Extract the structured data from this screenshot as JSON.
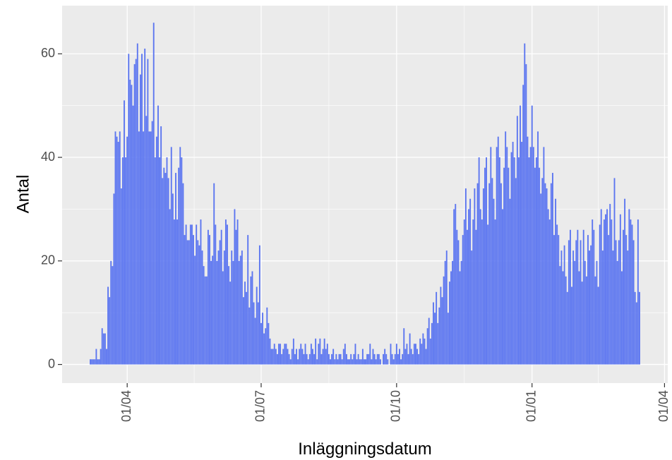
{
  "chart_data": {
    "type": "bar",
    "x_label": "Inläggningsdatum",
    "y_label": "Antal",
    "color": "#5b75f0",
    "grid": true,
    "xlim": [
      -44.2,
      367.2
    ],
    "ylim": [
      -3.6,
      69.3
    ],
    "xticks": [
      {
        "value": 0,
        "label": "01/04"
      },
      {
        "value": 91,
        "label": "01/07"
      },
      {
        "value": 183,
        "label": "01/10"
      },
      {
        "value": 275,
        "label": "01/01"
      },
      {
        "value": 365,
        "label": "01/04"
      }
    ],
    "yticks": [
      0,
      20,
      40,
      60
    ],
    "x": [
      -25,
      -24,
      -23,
      -22,
      -21,
      -20,
      -19,
      -18,
      -17,
      -16,
      -15,
      -14,
      -13,
      -12,
      -11,
      -10,
      -9,
      -8,
      -7,
      -6,
      -5,
      -4,
      -3,
      -2,
      -1,
      0,
      1,
      2,
      3,
      4,
      5,
      6,
      7,
      8,
      9,
      10,
      11,
      12,
      13,
      14,
      15,
      16,
      17,
      18,
      19,
      20,
      21,
      22,
      23,
      24,
      25,
      26,
      27,
      28,
      29,
      30,
      31,
      32,
      33,
      34,
      35,
      36,
      37,
      38,
      39,
      40,
      41,
      42,
      43,
      44,
      45,
      46,
      47,
      48,
      49,
      50,
      51,
      52,
      53,
      54,
      55,
      56,
      57,
      58,
      59,
      60,
      61,
      62,
      63,
      64,
      65,
      66,
      67,
      68,
      69,
      70,
      71,
      72,
      73,
      74,
      75,
      76,
      77,
      78,
      79,
      80,
      81,
      82,
      83,
      84,
      85,
      86,
      87,
      88,
      89,
      90,
      91,
      92,
      93,
      94,
      95,
      96,
      97,
      98,
      99,
      100,
      101,
      102,
      103,
      104,
      105,
      106,
      107,
      108,
      109,
      110,
      111,
      112,
      113,
      114,
      115,
      116,
      117,
      118,
      119,
      120,
      121,
      122,
      123,
      124,
      125,
      126,
      127,
      128,
      129,
      130,
      131,
      132,
      133,
      134,
      135,
      136,
      137,
      138,
      139,
      140,
      141,
      142,
      143,
      144,
      145,
      146,
      147,
      148,
      149,
      150,
      151,
      152,
      153,
      154,
      155,
      156,
      157,
      158,
      159,
      160,
      161,
      162,
      163,
      164,
      165,
      166,
      167,
      168,
      169,
      170,
      171,
      172,
      173,
      174,
      175,
      176,
      177,
      178,
      179,
      180,
      181,
      182,
      183,
      184,
      185,
      186,
      187,
      188,
      189,
      190,
      191,
      192,
      193,
      194,
      195,
      196,
      197,
      198,
      199,
      200,
      201,
      202,
      203,
      204,
      205,
      206,
      207,
      208,
      209,
      210,
      211,
      212,
      213,
      214,
      215,
      216,
      217,
      218,
      219,
      220,
      221,
      222,
      223,
      224,
      225,
      226,
      227,
      228,
      229,
      230,
      231,
      232,
      233,
      234,
      235,
      236,
      237,
      238,
      239,
      240,
      241,
      242,
      243,
      244,
      245,
      246,
      247,
      248,
      249,
      250,
      251,
      252,
      253,
      254,
      255,
      256,
      257,
      258,
      259,
      260,
      261,
      262,
      263,
      264,
      265,
      266,
      267,
      268,
      269,
      270,
      271,
      272,
      273,
      274,
      275,
      276,
      277,
      278,
      279,
      280,
      281,
      282,
      283,
      284,
      285,
      286,
      287,
      288,
      289,
      290,
      291,
      292,
      293,
      294,
      295,
      296,
      297,
      298,
      299,
      300,
      301,
      302,
      303,
      304,
      305,
      306,
      307,
      308,
      309,
      310,
      311,
      312,
      313,
      314,
      315,
      316,
      317,
      318,
      319,
      320,
      321,
      322,
      323,
      324,
      325,
      326,
      327,
      328,
      329,
      330,
      331,
      332,
      333,
      334,
      335,
      336,
      337,
      338,
      339,
      340,
      341,
      342,
      343,
      344,
      345,
      346,
      347,
      348
    ],
    "values": [
      1,
      1,
      1,
      1,
      3,
      1,
      1,
      3,
      7,
      6,
      6,
      3,
      15,
      13,
      20,
      19,
      33,
      45,
      44,
      43,
      45,
      34,
      40,
      51,
      40,
      44,
      60,
      55,
      54,
      50,
      58,
      59,
      62,
      45,
      56,
      60,
      45,
      61,
      48,
      59,
      45,
      45,
      47,
      66,
      40,
      44,
      50,
      40,
      46,
      36,
      38,
      37,
      40,
      36,
      30,
      42,
      33,
      28,
      37,
      28,
      38,
      42,
      40,
      35,
      25,
      27,
      24,
      24,
      27,
      27,
      25,
      21,
      27,
      24,
      23,
      28,
      22,
      19,
      17,
      17,
      26,
      25,
      20,
      21,
      35,
      27,
      20,
      22,
      24,
      26,
      18,
      22,
      28,
      27,
      19,
      16,
      22,
      20,
      30,
      26,
      28,
      20,
      21,
      22,
      13,
      16,
      14,
      25,
      11,
      17,
      18,
      12,
      9,
      15,
      12,
      23,
      8,
      10,
      6,
      7,
      11,
      8,
      5,
      3,
      3,
      4,
      3,
      2,
      4,
      4,
      2,
      3,
      4,
      4,
      3,
      2,
      1,
      3,
      5,
      2,
      3,
      1,
      3,
      4,
      3,
      2,
      4,
      2,
      1,
      2,
      4,
      3,
      2,
      5,
      1,
      4,
      5,
      2,
      3,
      5,
      3,
      4,
      2,
      1,
      2,
      3,
      1,
      2,
      1,
      2,
      2,
      1,
      3,
      4,
      2,
      1,
      1,
      2,
      1,
      2,
      4,
      1,
      2,
      1,
      1,
      3,
      1,
      1,
      2,
      2,
      4,
      1,
      3,
      2,
      1,
      2,
      2,
      1,
      0,
      2,
      3,
      2,
      1,
      0,
      4,
      2,
      1,
      2,
      4,
      2,
      3,
      1,
      2,
      7,
      3,
      4,
      2,
      6,
      3,
      2,
      4,
      4,
      3,
      2,
      5,
      4,
      6,
      5,
      3,
      7,
      9,
      5,
      8,
      12,
      10,
      14,
      8,
      11,
      15,
      13,
      17,
      20,
      22,
      10,
      16,
      18,
      20,
      30,
      31,
      26,
      24,
      18,
      20,
      25,
      28,
      34,
      26,
      30,
      32,
      22,
      28,
      34,
      26,
      35,
      40,
      30,
      28,
      34,
      38,
      40,
      27,
      35,
      42,
      36,
      32,
      28,
      42,
      44,
      40,
      35,
      30,
      38,
      45,
      42,
      38,
      32,
      41,
      43,
      40,
      36,
      48,
      40,
      50,
      43,
      54,
      62,
      58,
      44,
      40,
      42,
      50,
      42,
      38,
      40,
      45,
      38,
      33,
      36,
      42,
      35,
      34,
      30,
      28,
      35,
      37,
      25,
      32,
      27,
      25,
      19,
      22,
      18,
      23,
      17,
      14,
      24,
      26,
      15,
      22,
      20,
      24,
      26,
      18,
      24,
      16,
      26,
      20,
      17,
      25,
      22,
      23,
      28,
      26,
      17,
      20,
      15,
      27,
      30,
      22,
      28,
      29,
      30,
      25,
      31,
      28,
      22,
      36,
      24,
      20,
      24,
      29,
      18,
      26,
      32,
      25,
      22,
      30,
      28,
      27,
      24,
      14,
      12,
      28,
      14
    ]
  }
}
